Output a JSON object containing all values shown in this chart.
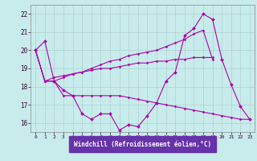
{
  "xlabel": "Windchill (Refroidissement éolien,°C)",
  "background_color": "#c8ecec",
  "label_bg_color": "#6633aa",
  "label_text_color": "#ffffff",
  "grid_color": "#b0d0d0",
  "line_color": "#aa00aa",
  "xlim": [
    -0.5,
    23.5
  ],
  "ylim": [
    15.5,
    22.5
  ],
  "yticks": [
    16,
    17,
    18,
    19,
    20,
    21,
    22
  ],
  "xticks": [
    0,
    1,
    2,
    3,
    4,
    5,
    6,
    7,
    8,
    9,
    10,
    11,
    12,
    13,
    14,
    15,
    16,
    17,
    18,
    19,
    20,
    21,
    22,
    23
  ],
  "series": [
    {
      "x": [
        0,
        1,
        2,
        3,
        4,
        5,
        6,
        7,
        8,
        9,
        10,
        11,
        12,
        13,
        14,
        15,
        16,
        17,
        18,
        19,
        20,
        21,
        22,
        23
      ],
      "y": [
        20.0,
        20.5,
        18.3,
        17.8,
        17.5,
        16.5,
        16.2,
        16.5,
        16.5,
        15.6,
        15.9,
        15.8,
        16.4,
        17.1,
        18.3,
        18.8,
        20.8,
        21.2,
        22.0,
        21.7,
        19.5,
        18.1,
        16.9,
        16.2
      ],
      "marker": true
    },
    {
      "x": [
        0,
        1,
        2,
        3,
        4,
        5,
        6,
        7,
        8,
        9,
        10,
        11,
        12,
        13,
        14,
        15,
        16,
        17,
        18,
        19
      ],
      "y": [
        20.0,
        18.3,
        18.3,
        18.5,
        18.7,
        18.8,
        19.0,
        19.2,
        19.4,
        19.5,
        19.7,
        19.8,
        19.9,
        20.0,
        20.2,
        20.4,
        20.6,
        20.9,
        21.1,
        19.5
      ],
      "marker": false
    },
    {
      "x": [
        0,
        1,
        2,
        3,
        4,
        5,
        6,
        7,
        8,
        9,
        10,
        11,
        12,
        13,
        14,
        15,
        16,
        17,
        18,
        19
      ],
      "y": [
        20.0,
        18.3,
        18.5,
        18.6,
        18.7,
        18.8,
        18.9,
        19.0,
        19.0,
        19.1,
        19.2,
        19.3,
        19.3,
        19.4,
        19.4,
        19.5,
        19.5,
        19.6,
        19.6,
        19.6
      ],
      "marker": false
    },
    {
      "x": [
        0,
        1,
        2,
        3,
        4,
        5,
        6,
        7,
        8,
        9,
        10,
        11,
        12,
        13,
        14,
        15,
        16,
        17,
        18,
        19,
        20,
        21,
        22,
        23
      ],
      "y": [
        20.0,
        18.3,
        18.3,
        17.5,
        17.5,
        17.5,
        17.5,
        17.5,
        17.5,
        17.5,
        17.4,
        17.3,
        17.2,
        17.1,
        17.0,
        16.9,
        16.8,
        16.7,
        16.6,
        16.5,
        16.4,
        16.3,
        16.2,
        16.2
      ],
      "marker": false
    }
  ]
}
